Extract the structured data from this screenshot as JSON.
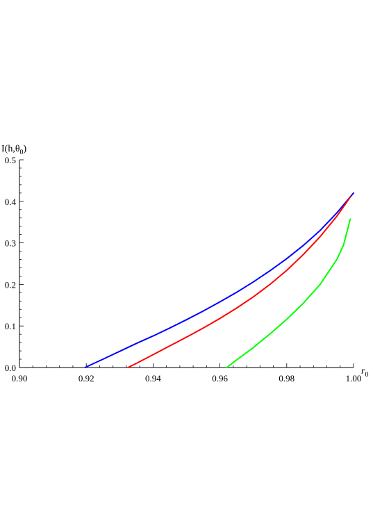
{
  "chart_data": {
    "type": "line",
    "title": "",
    "xlabel": "r",
    "xlabel_sub": "0",
    "ylabel": "I(h,θ",
    "ylabel_sub": "0",
    "ylabel_close": ")",
    "xlim": [
      0.9,
      1.0
    ],
    "ylim": [
      0.0,
      0.5
    ],
    "x_ticks": [
      "0.90",
      "0.92",
      "0.94",
      "0.96",
      "0.98",
      "1.00"
    ],
    "y_ticks": [
      "0.0",
      "0.1",
      "0.2",
      "0.3",
      "0.4",
      "0.5"
    ],
    "grid": false,
    "legend": "none",
    "series": [
      {
        "color": "#0000ff",
        "x": [
          0.9196,
          0.925,
          0.93,
          0.935,
          0.94,
          0.945,
          0.95,
          0.955,
          0.96,
          0.965,
          0.97,
          0.975,
          0.98,
          0.985,
          0.99,
          0.995,
          1.0
        ],
        "y": [
          0.0,
          0.02,
          0.039,
          0.058,
          0.076,
          0.095,
          0.115,
          0.136,
          0.158,
          0.181,
          0.206,
          0.233,
          0.262,
          0.294,
          0.33,
          0.372,
          0.42
        ]
      },
      {
        "color": "#ff0000",
        "x": [
          0.9325,
          0.935,
          0.94,
          0.945,
          0.95,
          0.955,
          0.96,
          0.965,
          0.97,
          0.975,
          0.98,
          0.985,
          0.99,
          0.995,
          0.999
        ],
        "y": [
          0.0,
          0.01,
          0.031,
          0.052,
          0.073,
          0.095,
          0.118,
          0.143,
          0.17,
          0.2,
          0.234,
          0.272,
          0.315,
          0.364,
          0.41
        ]
      },
      {
        "color": "#00ff00",
        "x": [
          0.962,
          0.965,
          0.97,
          0.975,
          0.98,
          0.985,
          0.99,
          0.995,
          0.997,
          0.999
        ],
        "y": [
          0.0,
          0.018,
          0.048,
          0.081,
          0.116,
          0.155,
          0.2,
          0.26,
          0.295,
          0.357
        ]
      }
    ]
  }
}
